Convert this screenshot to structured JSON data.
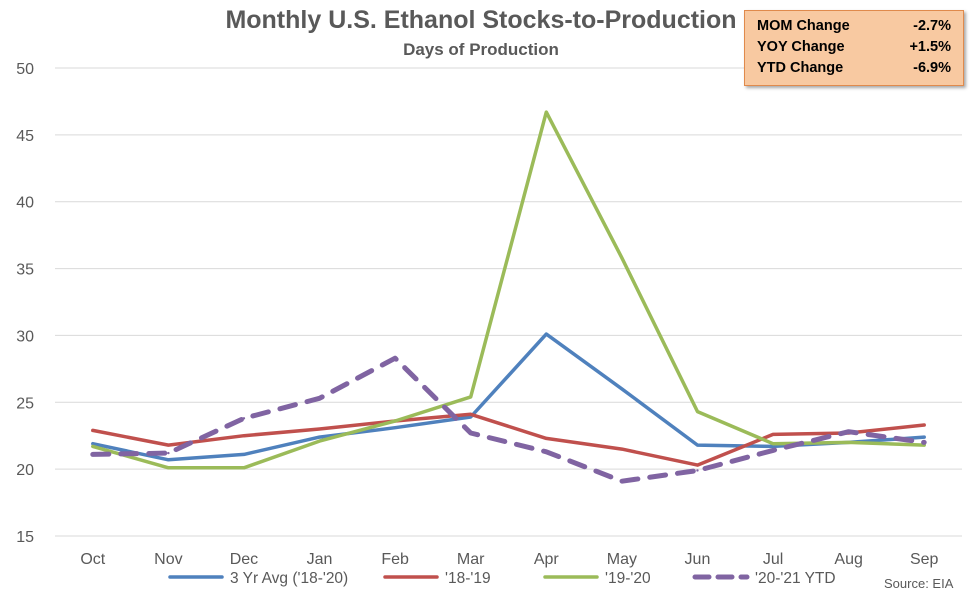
{
  "chart_data": {
    "type": "line",
    "title": "Monthly U.S. Ethanol Stocks-to-Production",
    "subtitle": "Days of Production",
    "categories": [
      "Oct",
      "Nov",
      "Dec",
      "Jan",
      "Feb",
      "Mar",
      "Apr",
      "May",
      "Jun",
      "Jul",
      "Aug",
      "Sep"
    ],
    "ylim": [
      15,
      50
    ],
    "yticks": [
      15,
      20,
      25,
      30,
      35,
      40,
      45,
      50
    ],
    "grid": true,
    "legend_position": "bottom",
    "series": [
      {
        "name": "3 Yr Avg ('18-'20)",
        "color": "#4f81bd",
        "dashed": false,
        "values": [
          21.9,
          20.7,
          21.1,
          22.4,
          23.1,
          23.9,
          30.1,
          26.0,
          21.8,
          21.7,
          22.0,
          22.4
        ]
      },
      {
        "name": "'18-'19",
        "color": "#c0504d",
        "dashed": false,
        "values": [
          22.9,
          21.8,
          22.5,
          23.0,
          23.6,
          24.1,
          22.3,
          21.5,
          20.3,
          22.6,
          22.7,
          23.3
        ]
      },
      {
        "name": "'19-'20",
        "color": "#9bbb59",
        "dashed": false,
        "values": [
          21.7,
          20.1,
          20.1,
          22.1,
          23.6,
          25.4,
          46.7,
          35.8,
          24.3,
          21.9,
          22.0,
          21.8
        ]
      },
      {
        "name": "'20-'21 YTD",
        "color": "#8064a2",
        "dashed": true,
        "values": [
          21.1,
          21.2,
          23.8,
          25.3,
          28.3,
          22.7,
          21.3,
          19.1,
          19.9,
          21.4,
          22.8,
          22.0
        ]
      }
    ],
    "source": "Source: EIA"
  },
  "stats_box": {
    "background": "#f8c9a1",
    "rows": [
      {
        "label": "MOM Change",
        "value": "-2.7%"
      },
      {
        "label": "YOY Change",
        "value": "+1.5%"
      },
      {
        "label": "YTD Change",
        "value": "-6.9%"
      }
    ]
  }
}
